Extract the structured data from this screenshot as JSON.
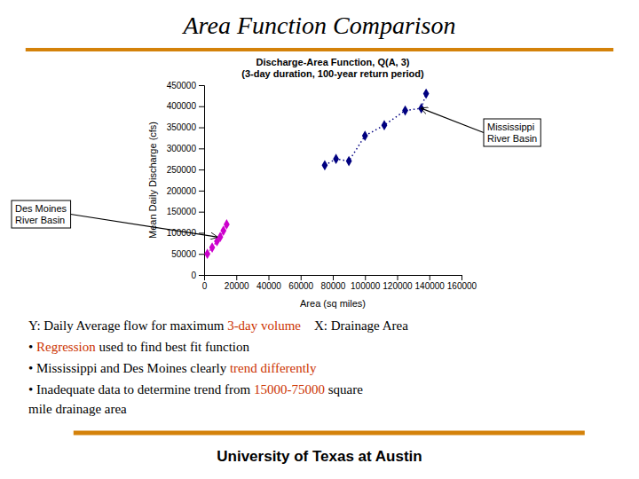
{
  "chart_data": {
    "type": "scatter",
    "title": "Area Function Comparison",
    "subtitle": [
      "Discharge-Area Function, Q(A, 3)",
      "(3-day duration, 100-year return period)"
    ],
    "x_label": "Area (sq miles)",
    "y_label": "Mean Daily Discharge (cfs)",
    "series": [
      {
        "color": "#000080",
        "marker": "diamond",
        "line_style": "dotted",
        "x": [
          75000,
          82000,
          90000,
          100000,
          112000,
          125000,
          135000,
          138000
        ],
        "values": [
          260000,
          275000,
          270000,
          330000,
          355000,
          390000,
          395000,
          430000
        ]
      },
      {
        "color": "#CC00CC",
        "marker": "diamond",
        "line_style": "dotted",
        "x": [
          2000,
          5000,
          8000,
          10000,
          12000,
          14000
        ],
        "values": [
          50000,
          65000,
          80000,
          90000,
          105000,
          120000
        ]
      }
    ],
    "xlim": [
      0,
      160000
    ],
    "ylim": [
      0,
      450000
    ],
    "xticks": [
      0,
      20000,
      40000,
      60000,
      80000,
      100000,
      120000,
      140000,
      160000
    ],
    "yticks": [
      0,
      50000,
      100000,
      150000,
      200000,
      250000,
      300000,
      350000,
      400000,
      450000
    ],
    "grid": false,
    "annotations": [
      {
        "text": "Mississippi\nRiver Basin",
        "x": 135000,
        "y": 395000
      },
      {
        "text": "Des Moines\nRiver Basin",
        "x": 8000,
        "y": 90000
      }
    ],
    "notes": [
      [
        {
          "text": "Y: Daily Average flow for maximum ",
          "color": "#000000"
        },
        {
          "text": "3-day volume",
          "color": "#CC3300"
        },
        {
          "text": "    X: Drainage Area",
          "color": "#000000"
        }
      ],
      [
        {
          "text": "• ",
          "color": "#000000"
        },
        {
          "text": "Regression",
          "color": "#CC3300"
        },
        {
          "text": " used to find best fit function",
          "color": "#000000"
        }
      ],
      [
        {
          "text": "• ",
          "color": "#000000"
        },
        {
          "text": "Mississippi and Des Moines clearly ",
          "color": "#000000"
        },
        {
          "text": "trend differently",
          "color": "#CC3300"
        }
      ],
      [
        {
          "text": "• ",
          "color": "#000000"
        },
        {
          "text": "Inadequate data to determine trend from ",
          "color": "#000000"
        },
        {
          "text": "15000-75000",
          "color": "#CC3300"
        },
        {
          "text": " square",
          "color": "#000000"
        }
      ],
      [
        {
          "text": "mile drainage area",
          "color": "#000000"
        }
      ]
    ],
    "footer": "University of Texas at Austin"
  }
}
